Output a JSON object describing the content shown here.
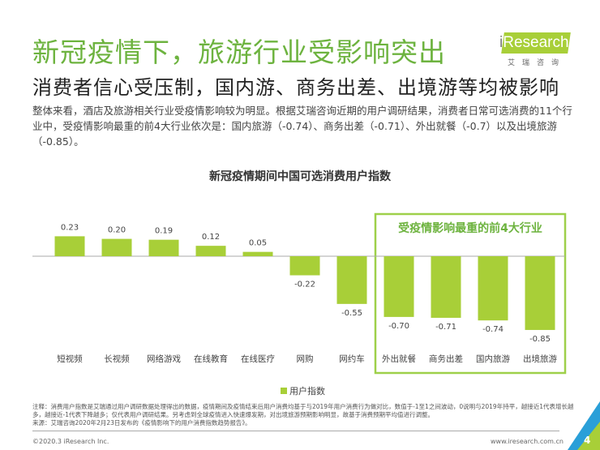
{
  "header": {
    "title": "新冠疫情下，旅游行业受影响突出",
    "subtitle": "消费者信心受压制，国内游、商务出差、出境游等均被影响",
    "logo_text": "iResearch",
    "logo_cn": "艾瑞咨询"
  },
  "body": "整体来看，酒店及旅游相关行业受疫情影响较为明显。根据艾瑞咨询近期的用户调研结果，消费者日常可选消费的11个行业中，受疫情影响最重的前4大行业依次是：国内旅游（-0.74）、商务出差（-0.71）、外出就餐（-0.7）以及出境旅游（-0.85）。",
  "chart_data": {
    "type": "bar",
    "title": "新冠疫情期间中国可选消费用户指数",
    "categories": [
      "短视频",
      "长视频",
      "网络游戏",
      "在线教育",
      "在线医疗",
      "网购",
      "网约车",
      "外出就餐",
      "商务出差",
      "国内旅游",
      "出境旅游"
    ],
    "series": [
      {
        "name": "用户指数",
        "values": [
          0.23,
          0.2,
          0.19,
          0.12,
          0.05,
          -0.22,
          -0.55,
          -0.7,
          -0.71,
          -0.74,
          -0.85
        ]
      }
    ],
    "data_labels": [
      "0.23",
      "0.20",
      "0.19",
      "0.12",
      "0.05",
      "-0.22",
      "-0.55",
      "-0.70",
      "-0.71",
      "-0.74",
      "-0.85"
    ],
    "annotation": "受疫情影响最重的前4大行业",
    "legend_position": "bottom",
    "grid": false,
    "bar_color": "#a8cf38",
    "highlight_color": "#9ed04a"
  },
  "footer": {
    "note": "注释：消费用户指数是艾瑞通过用户调研数据处理得出的数据，疫情期间及疫情结束后用户消费均基于与2019年用户消费行为做对比，数值于-1至1之间波动，0说明与2019年持平，越接近1代表增长越多，越接近-1代表下降越多；仅代表用户调研结果。另考虑到全球疫情进入快速爆发期，对出境旅游预期影响明显，故基于消费预期平均值进行调整。",
    "source": "来源：艾瑞咨询2020年2月23日发布的《疫情影响下的用户消费指数趋势报告》。",
    "copyright": "©2020.3 iResearch Inc.",
    "url": "www.iresearch.com.cn",
    "page": "4"
  }
}
